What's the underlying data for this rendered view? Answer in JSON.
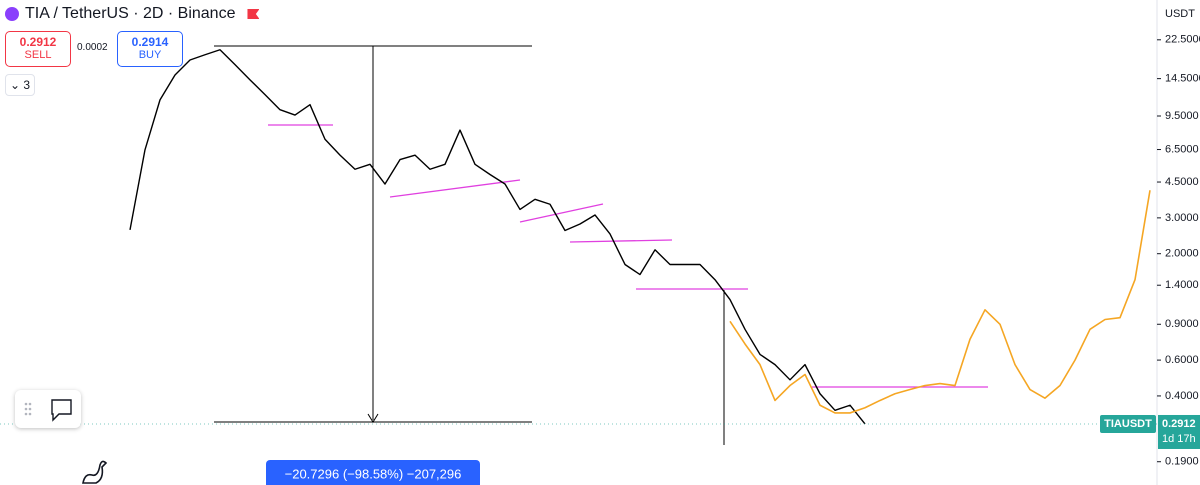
{
  "header": {
    "symbol": "TIA / TetherUS · 2D · Binance",
    "sell_price": "0.2912",
    "sell_label": "SELL",
    "spread": "0.0002",
    "buy_price": "0.2914",
    "buy_label": "BUY",
    "indicators": "3"
  },
  "chart_data": {
    "type": "line",
    "log_scale": true,
    "y_axis_label": "USDT",
    "ylim": [
      0.146,
      35.3
    ],
    "yticks": [
      {
        "value": 22.5,
        "label": "22.5000"
      },
      {
        "value": 14.5,
        "label": "14.5000"
      },
      {
        "value": 9.5,
        "label": "9.5000"
      },
      {
        "value": 6.5,
        "label": "6.5000"
      },
      {
        "value": 4.5,
        "label": "4.5000"
      },
      {
        "value": 3,
        "label": "3.0000"
      },
      {
        "value": 2,
        "label": "2.0000"
      },
      {
        "value": 1.4,
        "label": "1.4000"
      },
      {
        "value": 0.9,
        "label": "0.9000"
      },
      {
        "value": 0.6,
        "label": "0.6000"
      },
      {
        "value": 0.4,
        "label": "0.4000"
      },
      {
        "value": 0.19,
        "label": "0.1900"
      }
    ],
    "series": [
      {
        "color": "#000000",
        "values": [
          2.62,
          6.48,
          11.4,
          15.1,
          17.9,
          19.0,
          20.1,
          17.0,
          14.3,
          12.1,
          10.2,
          9.6,
          10.8,
          7.3,
          6.1,
          5.2,
          5.5,
          4.4,
          5.8,
          6.1,
          5.2,
          5.5,
          8.1,
          5.5,
          4.9,
          4.4,
          3.3,
          3.7,
          3.5,
          2.6,
          2.8,
          3.1,
          2.5,
          1.77,
          1.58,
          2.09,
          1.77,
          1.77,
          1.77,
          1.49,
          1.19,
          0.85,
          0.64,
          0.57,
          0.48,
          0.57,
          0.41,
          0.34,
          0.36,
          0.2912,
          null,
          null,
          null,
          null,
          null,
          null,
          null,
          null,
          null,
          null,
          null,
          null,
          null,
          null,
          null,
          null,
          null,
          null,
          null
        ]
      },
      {
        "color": "#f5a623",
        "values": [
          null,
          null,
          null,
          null,
          null,
          null,
          null,
          null,
          null,
          null,
          null,
          null,
          null,
          null,
          null,
          null,
          null,
          null,
          null,
          null,
          null,
          null,
          null,
          null,
          null,
          null,
          null,
          null,
          null,
          null,
          null,
          null,
          null,
          null,
          null,
          null,
          null,
          null,
          null,
          null,
          0.93,
          0.72,
          0.57,
          0.38,
          0.45,
          0.51,
          0.36,
          0.33,
          0.33,
          0.35,
          0.38,
          0.41,
          0.43,
          0.45,
          0.46,
          0.45,
          0.76,
          1.06,
          0.9,
          0.57,
          0.43,
          0.39,
          0.45,
          0.6,
          0.85,
          0.95,
          0.97,
          1.49,
          4.1
        ]
      }
    ],
    "last_price": {
      "symbol": "TIAUSDT",
      "value": 0.2912,
      "countdown": "1d 17h"
    },
    "measure_label": "−20.7296 (−98.58%) −207,296"
  }
}
